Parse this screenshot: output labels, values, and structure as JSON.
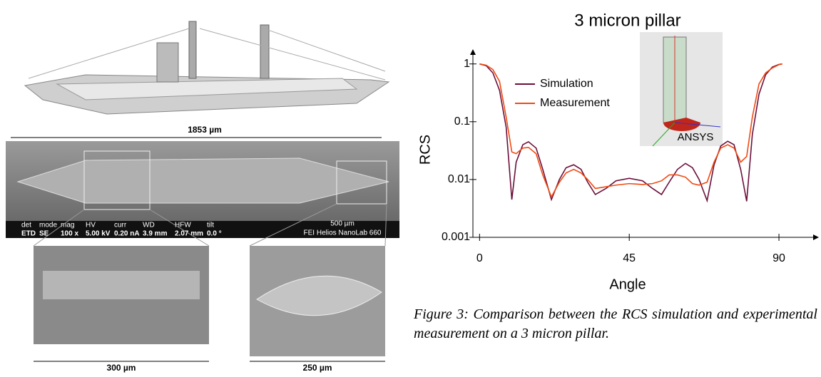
{
  "left_figure": {
    "top_scale": "1853 µm",
    "sem_bar": {
      "headers": [
        "det",
        "mode",
        "mag",
        "HV",
        "curr",
        "WD",
        "HFW",
        "tilt"
      ],
      "values": [
        "ETD",
        "SE",
        "100 x",
        "5.00 kV",
        "0.20 nA",
        "3.9 mm",
        "2.07 mm",
        "0.0 °"
      ],
      "scale": "500 µm",
      "instrument": "FEI Helios NanoLab 660"
    },
    "left_scale": "300 µm",
    "right_scale": "250 µm"
  },
  "chart_data": {
    "type": "line",
    "title": "3 micron pillar",
    "xlabel": "Angle",
    "ylabel": "RCS",
    "yscale": "log",
    "grid": false,
    "legend": "upper left",
    "annotation": "ANSYS",
    "xlim": [
      -2,
      102
    ],
    "xticks": [
      0,
      45,
      90
    ],
    "ylim": [
      0.001,
      1.8
    ],
    "yticks": [
      0.001,
      0.01,
      0.1,
      1
    ],
    "x": [
      0,
      2,
      4,
      6,
      8,
      9.7,
      11,
      13,
      14.7,
      17,
      19,
      21.6,
      24,
      26,
      28.3,
      30.5,
      32.5,
      34.8,
      38,
      41,
      45,
      49,
      52,
      54.7,
      57,
      59.5,
      61.9,
      64,
      66,
      68.4,
      70.5,
      72.5,
      74.6,
      76.5,
      78.5,
      80.3,
      82,
      84,
      86,
      88,
      90,
      91
    ],
    "series": [
      {
        "name": "Simulation",
        "color": "#6b0f3a",
        "values": [
          1,
          0.93,
          0.7,
          0.35,
          0.08,
          0.0045,
          0.02,
          0.04,
          0.045,
          0.035,
          0.015,
          0.0045,
          0.01,
          0.016,
          0.018,
          0.015,
          0.009,
          0.0055,
          0.007,
          0.0095,
          0.0105,
          0.0095,
          0.007,
          0.0055,
          0.009,
          0.015,
          0.019,
          0.016,
          0.01,
          0.0043,
          0.018,
          0.038,
          0.046,
          0.04,
          0.015,
          0.0042,
          0.06,
          0.3,
          0.65,
          0.88,
          0.98,
          1
        ]
      },
      {
        "name": "Measurement",
        "color": "#f04a12",
        "values": [
          1,
          0.95,
          0.8,
          0.5,
          0.12,
          0.03,
          0.028,
          0.035,
          0.036,
          0.028,
          0.012,
          0.005,
          0.009,
          0.013,
          0.015,
          0.013,
          0.01,
          0.007,
          0.0075,
          0.008,
          0.0085,
          0.0082,
          0.0085,
          0.0095,
          0.012,
          0.012,
          0.011,
          0.0085,
          0.008,
          0.009,
          0.02,
          0.035,
          0.04,
          0.035,
          0.02,
          0.025,
          0.12,
          0.45,
          0.7,
          0.85,
          0.97,
          1
        ]
      }
    ]
  },
  "caption": "Figure 3: Comparison between the RCS simulation and experimental measurement on a 3 micron pillar."
}
